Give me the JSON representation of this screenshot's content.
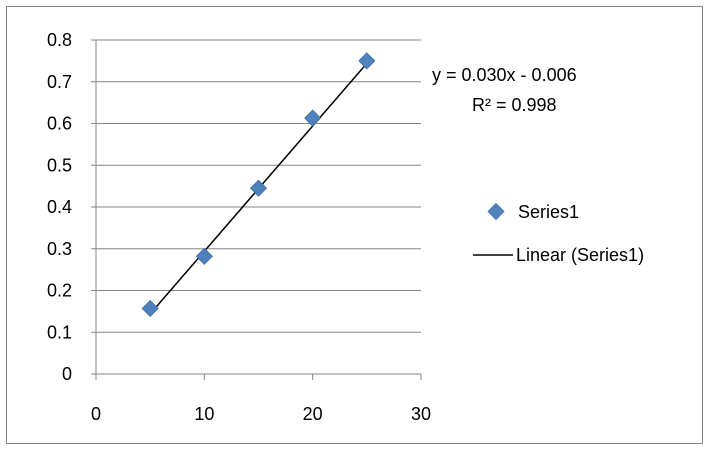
{
  "chart_data": {
    "type": "scatter",
    "title": "",
    "xlabel": "",
    "ylabel": "",
    "xlim": [
      0,
      30
    ],
    "ylim": [
      0,
      0.8
    ],
    "x_ticks": [
      "0",
      "10",
      "20",
      "30"
    ],
    "y_ticks": [
      "0",
      "0.1",
      "0.2",
      "0.3",
      "0.4",
      "0.5",
      "0.6",
      "0.7",
      "0.8"
    ],
    "grid": "horizontal",
    "legend_position": "right",
    "series": [
      {
        "name": "Series1",
        "marker": "diamond",
        "color": "#4f81bd",
        "x": [
          5,
          10,
          15,
          20,
          25
        ],
        "y": [
          0.157,
          0.282,
          0.445,
          0.613,
          0.75
        ]
      }
    ],
    "trendline": {
      "name": "Linear (Series1)",
      "type": "linear",
      "color": "#000000",
      "slope": 0.03,
      "intercept": -0.006,
      "equation_text": "y = 0.030x - 0.006",
      "r2_text": "R² = 0.998"
    }
  },
  "colors": {
    "grid": "#868686",
    "axis": "#868686",
    "frame": "#868686",
    "marker": "#4f81bd",
    "trendline": "#000000"
  }
}
